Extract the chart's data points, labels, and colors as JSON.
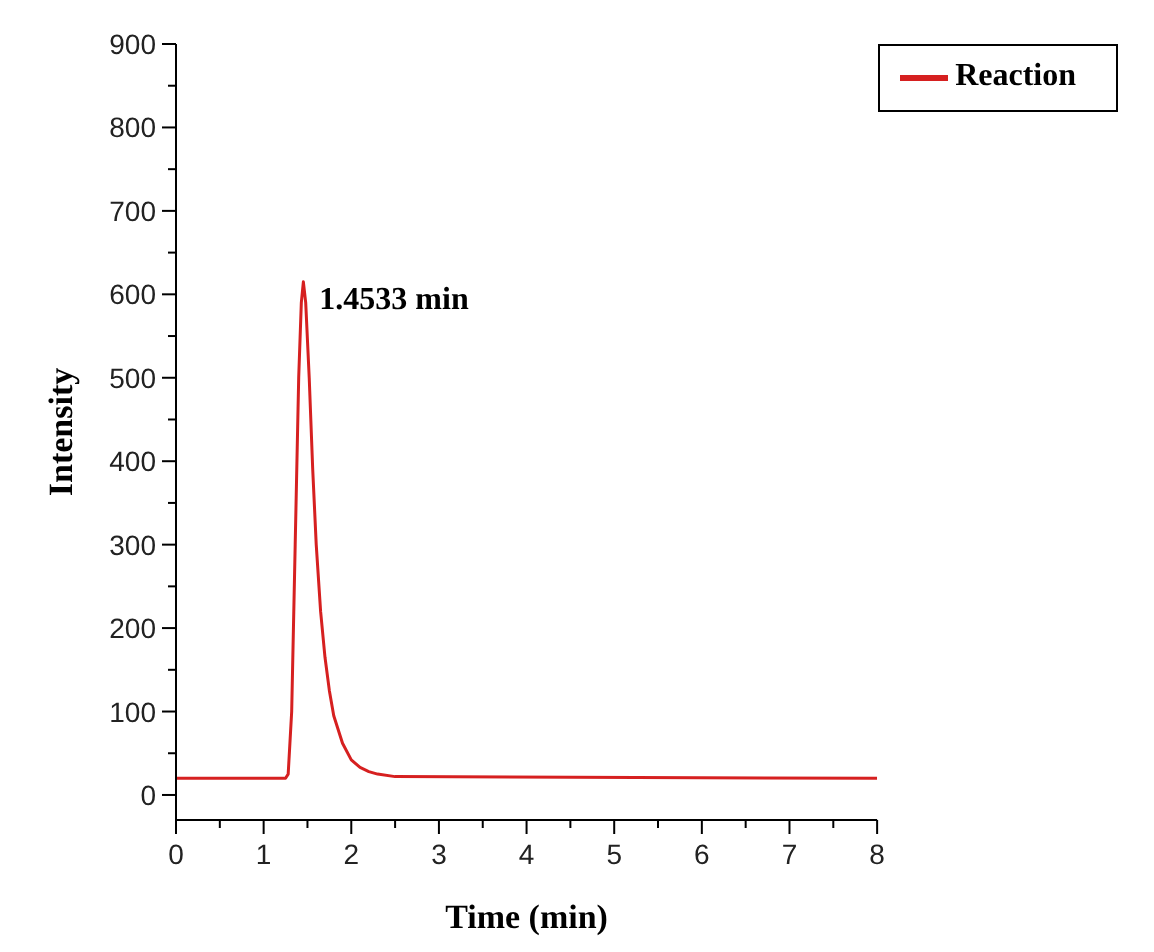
{
  "chart_data": {
    "type": "line",
    "xlabel": "Time (min)",
    "ylabel": "Intensity",
    "x": [
      0,
      1.25,
      1.28,
      1.32,
      1.36,
      1.4,
      1.43,
      1.4533,
      1.48,
      1.52,
      1.56,
      1.6,
      1.65,
      1.7,
      1.75,
      1.8,
      1.9,
      2.0,
      2.1,
      2.2,
      2.3,
      2.5,
      8
    ],
    "series": [
      {
        "name": "Reaction",
        "color": "#d62020",
        "values": [
          20,
          20,
          25,
          100,
          300,
          500,
          590,
          615,
          590,
          500,
          390,
          300,
          220,
          165,
          125,
          95,
          62,
          42,
          33,
          28,
          25,
          22,
          20
        ]
      }
    ],
    "xlim": [
      0,
      8
    ],
    "xticks": [
      0,
      {
        "value": 0.5,
        "label": null
      },
      1,
      {
        "value": 1.5,
        "label": null
      },
      2,
      {
        "value": 2.5,
        "label": null
      },
      3,
      {
        "value": 3.5,
        "label": null
      },
      4,
      {
        "value": 4.5,
        "label": null
      },
      5,
      {
        "value": 5.5,
        "label": null
      },
      6,
      {
        "value": 6.5,
        "label": null
      },
      7,
      {
        "value": 7.5,
        "label": null
      },
      8
    ],
    "ylim": [
      -30,
      900
    ],
    "yticks": [
      0,
      {
        "value": 50,
        "label": null
      },
      100,
      {
        "value": 150,
        "label": null
      },
      200,
      {
        "value": 250,
        "label": null
      },
      300,
      {
        "value": 350,
        "label": null
      },
      400,
      {
        "value": 450,
        "label": null
      },
      500,
      {
        "value": 550,
        "label": null
      },
      600,
      {
        "value": 650,
        "label": null
      },
      700,
      {
        "value": 750,
        "label": null
      },
      800,
      {
        "value": 850,
        "label": null
      },
      900
    ],
    "annotations": [
      {
        "text": "1.4533 min",
        "x": 1.4533,
        "y": 615
      }
    ],
    "legend": "top right",
    "grid": false,
    "marker": "none",
    "line_style": "solid"
  }
}
